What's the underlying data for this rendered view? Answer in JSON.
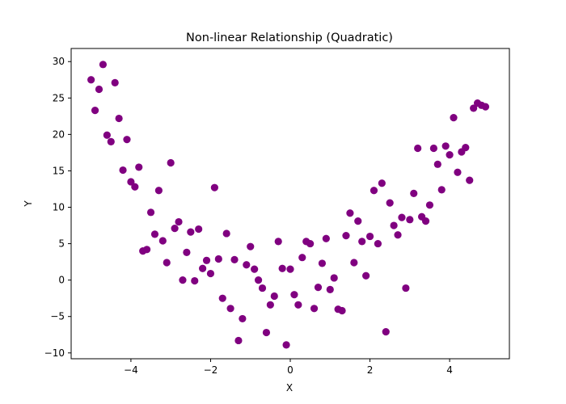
{
  "chart_data": {
    "type": "scatter",
    "title": "Non-linear Relationship (Quadratic)",
    "xlabel": "X",
    "ylabel": "Y",
    "xlim": [
      -5.5,
      5.5
    ],
    "ylim": [
      -10.8,
      31.8
    ],
    "xticks": [
      -4,
      -2,
      0,
      2,
      4
    ],
    "yticks": [
      -10,
      -5,
      0,
      5,
      10,
      15,
      20,
      25,
      30
    ],
    "grid": false,
    "legend": "none",
    "marker_color": "#800080",
    "series": [
      {
        "points": [
          [
            -5.0,
            27.5
          ],
          [
            -4.9,
            23.3
          ],
          [
            -4.8,
            26.2
          ],
          [
            -4.7,
            29.6
          ],
          [
            -4.6,
            19.9
          ],
          [
            -4.5,
            19.0
          ],
          [
            -4.4,
            27.1
          ],
          [
            -4.3,
            22.2
          ],
          [
            -4.2,
            15.1
          ],
          [
            -4.1,
            19.3
          ],
          [
            -4.0,
            13.5
          ],
          [
            -3.9,
            12.8
          ],
          [
            -3.8,
            15.5
          ],
          [
            -3.7,
            4.0
          ],
          [
            -3.6,
            4.2
          ],
          [
            -3.5,
            9.3
          ],
          [
            -3.4,
            6.3
          ],
          [
            -3.3,
            12.3
          ],
          [
            -3.2,
            5.4
          ],
          [
            -3.1,
            2.4
          ],
          [
            -3.0,
            16.1
          ],
          [
            -2.9,
            7.1
          ],
          [
            -2.8,
            8.0
          ],
          [
            -2.7,
            0.0
          ],
          [
            -2.6,
            3.8
          ],
          [
            -2.5,
            6.6
          ],
          [
            -2.4,
            -0.1
          ],
          [
            -2.3,
            7.0
          ],
          [
            -2.2,
            1.6
          ],
          [
            -2.1,
            2.7
          ],
          [
            -2.0,
            0.9
          ],
          [
            -1.9,
            12.7
          ],
          [
            -1.8,
            2.9
          ],
          [
            -1.7,
            -2.5
          ],
          [
            -1.6,
            6.4
          ],
          [
            -1.5,
            -3.9
          ],
          [
            -1.4,
            2.8
          ],
          [
            -1.3,
            -8.3
          ],
          [
            -1.2,
            -5.3
          ],
          [
            -1.1,
            2.1
          ],
          [
            -1.0,
            4.6
          ],
          [
            -0.9,
            1.5
          ],
          [
            -0.8,
            0.0
          ],
          [
            -0.7,
            -1.1
          ],
          [
            -0.6,
            -7.2
          ],
          [
            -0.5,
            -3.4
          ],
          [
            -0.4,
            -2.2
          ],
          [
            -0.3,
            5.3
          ],
          [
            -0.2,
            1.6
          ],
          [
            -0.1,
            -8.9
          ],
          [
            0.0,
            1.5
          ],
          [
            0.1,
            -2.0
          ],
          [
            0.2,
            -3.4
          ],
          [
            0.3,
            3.1
          ],
          [
            0.4,
            5.3
          ],
          [
            0.5,
            5.0
          ],
          [
            0.6,
            -3.9
          ],
          [
            0.7,
            -1.0
          ],
          [
            0.8,
            2.3
          ],
          [
            0.9,
            5.7
          ],
          [
            1.0,
            -1.3
          ],
          [
            1.1,
            0.3
          ],
          [
            1.2,
            -4.0
          ],
          [
            1.3,
            -4.2
          ],
          [
            1.4,
            6.1
          ],
          [
            1.5,
            9.2
          ],
          [
            1.6,
            2.4
          ],
          [
            1.7,
            8.1
          ],
          [
            1.8,
            5.3
          ],
          [
            1.9,
            0.6
          ],
          [
            2.0,
            6.0
          ],
          [
            2.1,
            12.3
          ],
          [
            2.2,
            5.0
          ],
          [
            2.3,
            13.3
          ],
          [
            2.4,
            -7.1
          ],
          [
            2.5,
            10.6
          ],
          [
            2.6,
            7.5
          ],
          [
            2.7,
            6.2
          ],
          [
            2.8,
            8.6
          ],
          [
            2.9,
            -1.1
          ],
          [
            3.0,
            8.3
          ],
          [
            3.1,
            11.9
          ],
          [
            3.2,
            18.1
          ],
          [
            3.3,
            8.7
          ],
          [
            3.4,
            8.1
          ],
          [
            3.5,
            10.3
          ],
          [
            3.6,
            18.1
          ],
          [
            3.7,
            15.9
          ],
          [
            3.8,
            12.4
          ],
          [
            3.9,
            18.4
          ],
          [
            4.0,
            17.2
          ],
          [
            4.1,
            22.3
          ],
          [
            4.2,
            14.8
          ],
          [
            4.3,
            17.6
          ],
          [
            4.4,
            18.2
          ],
          [
            4.5,
            13.7
          ],
          [
            4.6,
            23.6
          ],
          [
            4.7,
            24.3
          ],
          [
            4.8,
            24.0
          ],
          [
            4.9,
            23.8
          ]
        ]
      }
    ]
  }
}
